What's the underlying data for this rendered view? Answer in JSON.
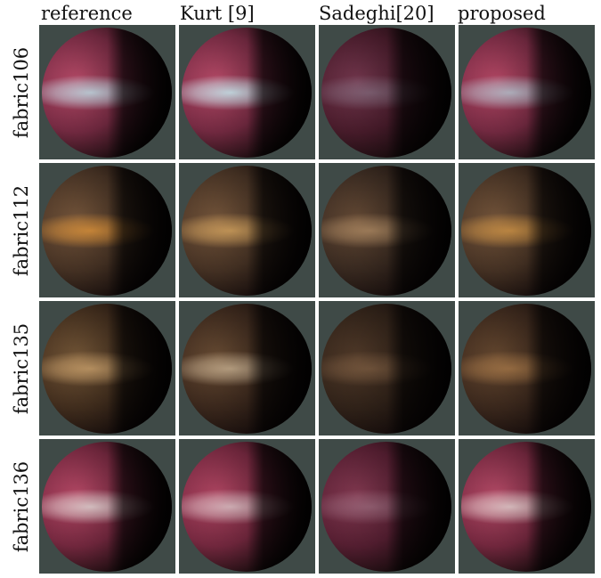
{
  "columns": [
    "reference",
    "Kurt [9]",
    "Sadeghi[20]",
    "proposed"
  ],
  "rows": [
    {
      "label": "fabric106",
      "spheres": [
        {
          "shade": "#7a2c45",
          "light": "#c24f6e",
          "band": "#cfe3ee",
          "band_strength": 0.95
        },
        {
          "shade": "#7a2c45",
          "light": "#c24f6e",
          "band": "#d6eaf3",
          "band_strength": 1.0
        },
        {
          "shade": "#4c1d2d",
          "light": "#7a3a52",
          "band": "#a8a6b8",
          "band_strength": 0.45
        },
        {
          "shade": "#7a2c45",
          "light": "#c04c6b",
          "band": "#c6d8e4",
          "band_strength": 0.85
        }
      ]
    },
    {
      "label": "fabric112",
      "spheres": [
        {
          "shade": "#4a3526",
          "light": "#7b5a3e",
          "band": "#f0a040",
          "band_strength": 0.85
        },
        {
          "shade": "#4a3526",
          "light": "#7b5a3e",
          "band": "#efb86a",
          "band_strength": 0.8
        },
        {
          "shade": "#3c2c22",
          "light": "#6a4e38",
          "band": "#d9ad7c",
          "band_strength": 0.65
        },
        {
          "shade": "#4a3526",
          "light": "#7b5a3e",
          "band": "#e9a64e",
          "band_strength": 0.8
        }
      ]
    },
    {
      "label": "fabric135",
      "spheres": [
        {
          "shade": "#45301f",
          "light": "#7a5b3a",
          "band": "#e9ba7d",
          "band_strength": 0.75
        },
        {
          "shade": "#3e2a1e",
          "light": "#6e5036",
          "band": "#f3d9b4",
          "band_strength": 0.7
        },
        {
          "shade": "#33241a",
          "light": "#553d2b",
          "band": "#b48860",
          "band_strength": 0.45
        },
        {
          "shade": "#3e2a1e",
          "light": "#6b4c32",
          "band": "#d59a5c",
          "band_strength": 0.6
        }
      ]
    },
    {
      "label": "fabric136",
      "spheres": [
        {
          "shade": "#7a2a42",
          "light": "#c14d6c",
          "band": "#f3e3e2",
          "band_strength": 0.9
        },
        {
          "shade": "#7a2a42",
          "light": "#bb4a68",
          "band": "#f0d6da",
          "band_strength": 0.85
        },
        {
          "shade": "#5a2034",
          "light": "#8a3c55",
          "band": "#c9a3b4",
          "band_strength": 0.45
        },
        {
          "shade": "#7a2a42",
          "light": "#c04f6d",
          "band": "#f4dcdc",
          "band_strength": 0.9
        }
      ]
    }
  ],
  "colors": {
    "background": "#3f4a47",
    "rim": "#0a0606",
    "grid_gap": "#ffffff"
  }
}
